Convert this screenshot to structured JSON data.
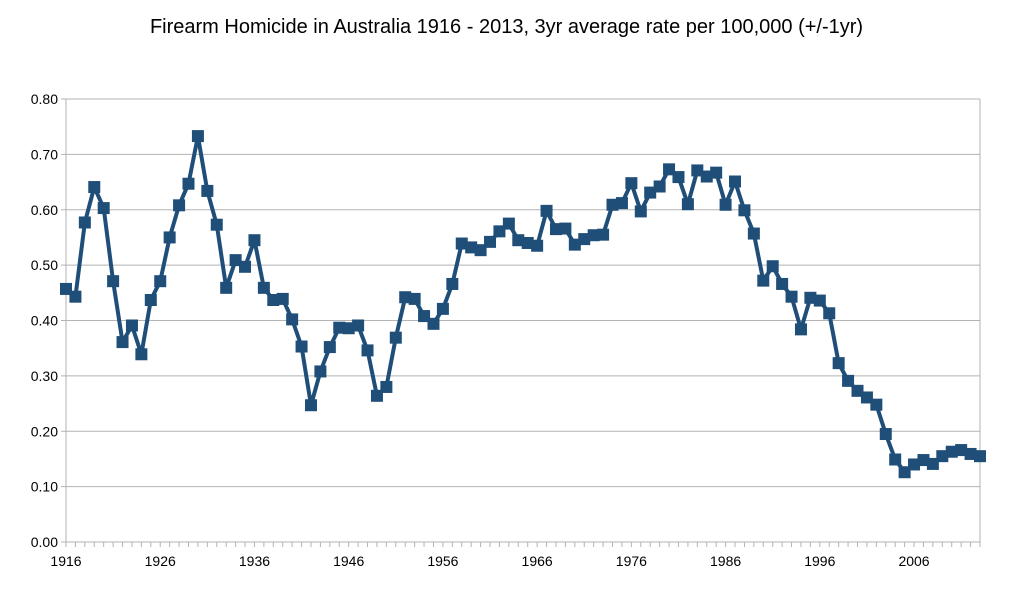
{
  "chart_data": {
    "type": "line",
    "title": "Firearm Homicide in Australia 1916 - 2013, 3yr average rate per 100,000 (+/-1yr)",
    "xlabel": "",
    "ylabel": "",
    "x_range": [
      1916,
      2013
    ],
    "ylim": [
      0,
      0.8
    ],
    "grid": true,
    "legend": "none",
    "x_ticks": [
      "1916",
      "1926",
      "1936",
      "1946",
      "1956",
      "1966",
      "1976",
      "1986",
      "1996",
      "2006"
    ],
    "y_ticks": [
      "0.00",
      "0.10",
      "0.20",
      "0.30",
      "0.40",
      "0.50",
      "0.60",
      "0.70",
      "0.80"
    ],
    "series_color": "#1f4e79",
    "series": [
      {
        "x": [
          1916,
          1917,
          1918,
          1919,
          1920,
          1921,
          1922,
          1923,
          1924,
          1925,
          1926,
          1927,
          1928,
          1929,
          1930,
          1931,
          1932,
          1933,
          1934,
          1935,
          1936,
          1937,
          1938,
          1939,
          1940,
          1941,
          1942,
          1943,
          1944,
          1945,
          1946,
          1947,
          1948,
          1949,
          1950,
          1951,
          1952,
          1953,
          1954,
          1955,
          1956,
          1957,
          1958,
          1959,
          1960,
          1961,
          1962,
          1963,
          1964,
          1965,
          1966,
          1967,
          1968,
          1969,
          1970,
          1971,
          1972,
          1973,
          1974,
          1975,
          1976,
          1977,
          1978,
          1979,
          1980,
          1981,
          1982,
          1983,
          1984,
          1985,
          1986,
          1987,
          1988,
          1989,
          1990,
          1991,
          1992,
          1993,
          1994,
          1995,
          1996,
          1997,
          1998,
          1999,
          2000,
          2001,
          2002,
          2003,
          2004,
          2005,
          2006,
          2007,
          2008,
          2009,
          2010,
          2011,
          2012,
          2013
        ],
        "values": [
          0.457,
          0.443,
          0.577,
          0.641,
          0.603,
          0.471,
          0.361,
          0.391,
          0.339,
          0.437,
          0.471,
          0.55,
          0.608,
          0.647,
          0.733,
          0.634,
          0.573,
          0.459,
          0.509,
          0.497,
          0.545,
          0.459,
          0.437,
          0.439,
          0.402,
          0.353,
          0.247,
          0.308,
          0.352,
          0.387,
          0.386,
          0.391,
          0.346,
          0.264,
          0.28,
          0.369,
          0.442,
          0.439,
          0.408,
          0.394,
          0.421,
          0.466,
          0.539,
          0.532,
          0.527,
          0.542,
          0.561,
          0.575,
          0.545,
          0.54,
          0.535,
          0.598,
          0.565,
          0.566,
          0.537,
          0.547,
          0.554,
          0.555,
          0.609,
          0.612,
          0.648,
          0.597,
          0.631,
          0.642,
          0.673,
          0.659,
          0.61,
          0.671,
          0.66,
          0.667,
          0.609,
          0.651,
          0.599,
          0.557,
          0.472,
          0.498,
          0.466,
          0.443,
          0.384,
          0.441,
          0.436,
          0.413,
          0.323,
          0.291,
          0.273,
          0.261,
          0.248,
          0.195,
          0.149,
          0.126,
          0.14,
          0.148,
          0.141,
          0.155,
          0.163,
          0.166,
          0.159,
          0.155
        ]
      }
    ]
  }
}
